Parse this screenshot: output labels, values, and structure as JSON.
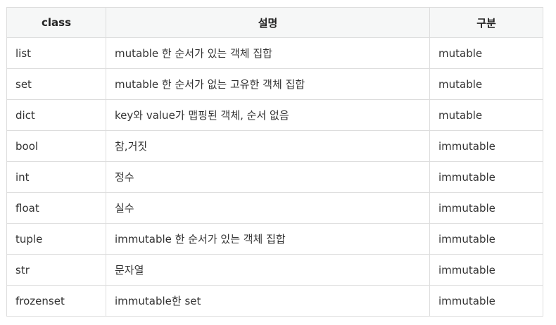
{
  "table": {
    "headers": [
      "class",
      "설명",
      "구분"
    ],
    "rows": [
      [
        "list",
        "mutable 한 순서가 있는 객체 집합",
        "mutable"
      ],
      [
        "set",
        "mutable 한 순서가 없는 고유한 객체 집합",
        "mutable"
      ],
      [
        "dict",
        "key와 value가 맵핑된 객체, 순서 없음",
        "mutable"
      ],
      [
        "bool",
        "참,거짓",
        "immutable"
      ],
      [
        "int",
        "정수",
        "immutable"
      ],
      [
        "float",
        "실수",
        "immutable"
      ],
      [
        "tuple",
        "immutable 한 순서가 있는 객체 집합",
        "immutable"
      ],
      [
        "str",
        "문자열",
        "immutable"
      ],
      [
        "frozenset",
        "immutable한 set",
        "immutable"
      ]
    ]
  }
}
